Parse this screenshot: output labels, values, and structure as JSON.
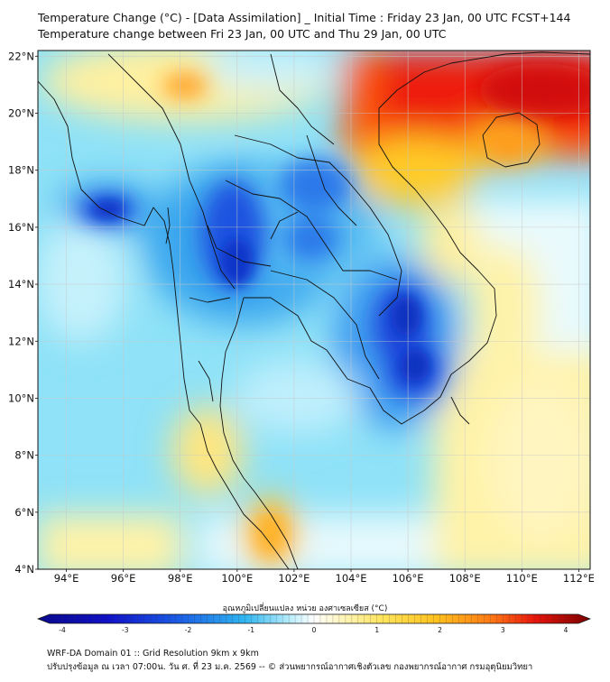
{
  "title": {
    "line1": "Temperature Change (°C) - [Data Assimilation] _ Initial Time : Friday 23 Jan, 00 UTC FCST+144",
    "line2": "Temperature change between Fri 23 Jan, 00 UTC and Thu 29 Jan, 00 UTC"
  },
  "map": {
    "lat_ticks": [
      "22°N",
      "20°N",
      "18°N",
      "16°N",
      "14°N",
      "12°N",
      "10°N",
      "8°N",
      "6°N",
      "4°N"
    ],
    "lon_ticks": [
      "94°E",
      "96°E",
      "98°E",
      "100°E",
      "102°E",
      "104°E",
      "106°E",
      "108°E",
      "110°E",
      "112°E"
    ],
    "lat_values": [
      22,
      20,
      18,
      16,
      14,
      12,
      10,
      8,
      6,
      4
    ],
    "lon_values": [
      94,
      96,
      98,
      100,
      102,
      104,
      106,
      108,
      110,
      112
    ],
    "extent": {
      "lon_min": 93,
      "lon_max": 112.4,
      "lat_min": 4,
      "lat_max": 22.2
    }
  },
  "colorbar": {
    "label": "อุณหภูมิเปลี่ยนแปลง หน่วย องศาเซลเซียส (°C)",
    "ticks": [
      "-4",
      "-3",
      "-2",
      "-1",
      "0",
      "1",
      "2",
      "3",
      "4"
    ],
    "tick_values": [
      -4,
      -3,
      -2,
      -1,
      0,
      1,
      2,
      3,
      4
    ],
    "colors": {
      "min": "#0a0a8c",
      "blue": "#1a3fd6",
      "cyan": "#2fb6f0",
      "lightcyan": "#bfeffc",
      "zero": "#ffffff",
      "lightyellow": "#fff4b0",
      "yellow": "#ffd22e",
      "orange": "#ff8a1a",
      "red": "#e8150b",
      "max": "#7a0000"
    }
  },
  "footer": {
    "line1": "WRF-DA Domain 01 :: Grid Resolution 9km x 9km",
    "line2": "ปรับปรุงข้อมูล ณ เวลา 07:00น. วัน ศ. ที่ 23 ม.ค. 2569 -- © ส่วนพยากรณ์อากาศเชิงตัวเลข กองพยากรณ์อากาศ กรมอุตุนิยมวิทยา"
  }
}
